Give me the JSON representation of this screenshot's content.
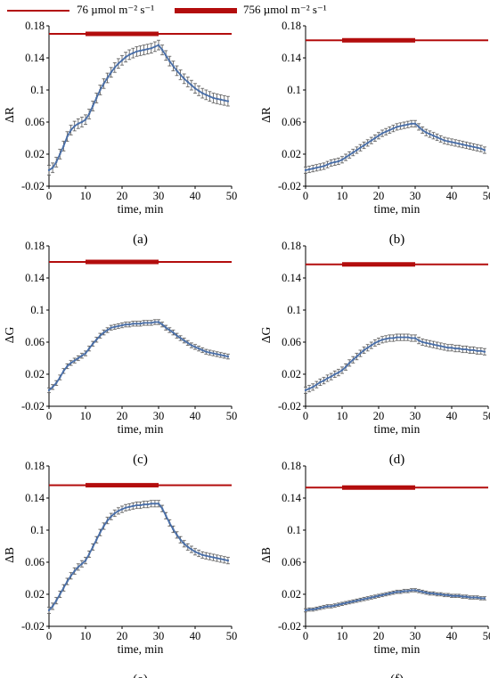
{
  "legend": {
    "thin_label": "76 µmol m⁻² s⁻¹",
    "thick_label": "756 µmol m⁻² s⁻¹",
    "color": "#b30d0d"
  },
  "colors": {
    "series": "#4a6fa8",
    "errorbar": "#555555",
    "light_bar": "#b30d0d"
  },
  "chart_data": [
    {
      "panel": "(a)",
      "type": "line",
      "ylabel": "ΔR",
      "xlabel": "time, min",
      "xlim": [
        0,
        50
      ],
      "ylim": [
        -0.02,
        0.18
      ],
      "xticks": [
        "0",
        "10",
        "20",
        "30",
        "40",
        "50"
      ],
      "yticks": [
        "-0.02",
        "0.02",
        "0.06",
        "0.1",
        "0.14",
        "0.18"
      ],
      "light_regime": [
        {
          "from": 0,
          "to": 10,
          "intensity": "low"
        },
        {
          "from": 10,
          "to": 30,
          "intensity": "high"
        },
        {
          "from": 30,
          "to": 50,
          "intensity": "low"
        }
      ],
      "light_bar_y": 0.17,
      "series": [
        {
          "x": [
            0,
            1,
            2,
            3,
            4,
            5,
            6,
            7,
            8,
            9,
            10,
            11,
            12,
            13,
            14,
            15,
            16,
            17,
            18,
            19,
            20,
            21,
            22,
            23,
            24,
            25,
            26,
            27,
            28,
            29,
            30,
            31,
            32,
            33,
            34,
            35,
            36,
            37,
            38,
            39,
            40,
            41,
            42,
            43,
            44,
            45,
            46,
            47,
            48,
            49
          ],
          "y": [
            0.0,
            0.003,
            0.01,
            0.02,
            0.03,
            0.042,
            0.05,
            0.055,
            0.058,
            0.06,
            0.063,
            0.07,
            0.08,
            0.09,
            0.1,
            0.108,
            0.115,
            0.122,
            0.128,
            0.133,
            0.137,
            0.141,
            0.144,
            0.146,
            0.148,
            0.149,
            0.15,
            0.151,
            0.152,
            0.154,
            0.156,
            0.15,
            0.143,
            0.136,
            0.13,
            0.124,
            0.119,
            0.114,
            0.11,
            0.106,
            0.102,
            0.099,
            0.096,
            0.094,
            0.092,
            0.09,
            0.089,
            0.088,
            0.087,
            0.086
          ],
          "err": 0.006
        }
      ]
    },
    {
      "panel": "(b)",
      "type": "line",
      "ylabel": "ΔR",
      "xlabel": "time, min",
      "xlim": [
        0,
        50
      ],
      "ylim": [
        -0.02,
        0.18
      ],
      "xticks": [
        "0",
        "10",
        "20",
        "30",
        "40",
        "50"
      ],
      "yticks": [
        "-0.02",
        "0.02",
        "0.06",
        "0.1",
        "0.14",
        "0.18"
      ],
      "light_regime": [
        {
          "from": 0,
          "to": 10,
          "intensity": "low"
        },
        {
          "from": 10,
          "to": 30,
          "intensity": "high"
        },
        {
          "from": 30,
          "to": 50,
          "intensity": "low"
        }
      ],
      "light_bar_y": 0.162,
      "series": [
        {
          "x": [
            0,
            1,
            2,
            3,
            4,
            5,
            6,
            7,
            8,
            9,
            10,
            11,
            12,
            13,
            14,
            15,
            16,
            17,
            18,
            19,
            20,
            21,
            22,
            23,
            24,
            25,
            26,
            27,
            28,
            29,
            30,
            31,
            32,
            33,
            34,
            35,
            36,
            37,
            38,
            39,
            40,
            41,
            42,
            43,
            44,
            45,
            46,
            47,
            48,
            49
          ],
          "y": [
            0.0,
            0.001,
            0.002,
            0.003,
            0.004,
            0.005,
            0.007,
            0.009,
            0.01,
            0.011,
            0.013,
            0.016,
            0.019,
            0.022,
            0.025,
            0.028,
            0.031,
            0.034,
            0.037,
            0.04,
            0.043,
            0.046,
            0.048,
            0.05,
            0.052,
            0.054,
            0.055,
            0.056,
            0.057,
            0.058,
            0.058,
            0.054,
            0.05,
            0.047,
            0.045,
            0.043,
            0.041,
            0.039,
            0.037,
            0.036,
            0.035,
            0.034,
            0.033,
            0.032,
            0.031,
            0.03,
            0.029,
            0.028,
            0.027,
            0.025
          ],
          "err": 0.004
        }
      ]
    },
    {
      "panel": "(c)",
      "type": "line",
      "ylabel": "ΔG",
      "xlabel": "time, min",
      "xlim": [
        0,
        50
      ],
      "ylim": [
        -0.02,
        0.18
      ],
      "xticks": [
        "0",
        "10",
        "20",
        "30",
        "40",
        "50"
      ],
      "yticks": [
        "-0.02",
        "0.02",
        "0.06",
        "0.1",
        "0.14",
        "0.18"
      ],
      "light_regime": [
        {
          "from": 0,
          "to": 10,
          "intensity": "low"
        },
        {
          "from": 10,
          "to": 30,
          "intensity": "high"
        },
        {
          "from": 30,
          "to": 50,
          "intensity": "low"
        }
      ],
      "light_bar_y": 0.16,
      "series": [
        {
          "x": [
            0,
            1,
            2,
            3,
            4,
            5,
            6,
            7,
            8,
            9,
            10,
            11,
            12,
            13,
            14,
            15,
            16,
            17,
            18,
            19,
            20,
            21,
            22,
            23,
            24,
            25,
            26,
            27,
            28,
            29,
            30,
            31,
            32,
            33,
            34,
            35,
            36,
            37,
            38,
            39,
            40,
            41,
            42,
            43,
            44,
            45,
            46,
            47,
            48,
            49
          ],
          "y": [
            0.0,
            0.004,
            0.009,
            0.016,
            0.024,
            0.03,
            0.034,
            0.037,
            0.04,
            0.043,
            0.046,
            0.052,
            0.058,
            0.063,
            0.068,
            0.072,
            0.075,
            0.078,
            0.079,
            0.08,
            0.081,
            0.082,
            0.082,
            0.083,
            0.083,
            0.083,
            0.084,
            0.084,
            0.084,
            0.085,
            0.085,
            0.082,
            0.078,
            0.075,
            0.072,
            0.068,
            0.065,
            0.062,
            0.059,
            0.056,
            0.054,
            0.052,
            0.05,
            0.048,
            0.047,
            0.046,
            0.045,
            0.044,
            0.043,
            0.042
          ],
          "err": 0.003
        }
      ]
    },
    {
      "panel": "(d)",
      "type": "line",
      "ylabel": "ΔG",
      "xlabel": "time, min",
      "xlim": [
        0,
        50
      ],
      "ylim": [
        -0.02,
        0.18
      ],
      "xticks": [
        "0",
        "10",
        "20",
        "30",
        "40",
        "50"
      ],
      "yticks": [
        "-0.02",
        "0.02",
        "0.06",
        "0.1",
        "0.14",
        "0.18"
      ],
      "light_regime": [
        {
          "from": 0,
          "to": 10,
          "intensity": "low"
        },
        {
          "from": 10,
          "to": 30,
          "intensity": "high"
        },
        {
          "from": 30,
          "to": 50,
          "intensity": "low"
        }
      ],
      "light_bar_y": 0.157,
      "series": [
        {
          "x": [
            0,
            1,
            2,
            3,
            4,
            5,
            6,
            7,
            8,
            9,
            10,
            11,
            12,
            13,
            14,
            15,
            16,
            17,
            18,
            19,
            20,
            21,
            22,
            23,
            24,
            25,
            26,
            27,
            28,
            29,
            30,
            31,
            32,
            33,
            34,
            35,
            36,
            37,
            38,
            39,
            40,
            41,
            42,
            43,
            44,
            45,
            46,
            47,
            48,
            49
          ],
          "y": [
            0.0,
            0.002,
            0.004,
            0.007,
            0.01,
            0.012,
            0.015,
            0.017,
            0.02,
            0.022,
            0.025,
            0.029,
            0.034,
            0.038,
            0.042,
            0.046,
            0.05,
            0.053,
            0.056,
            0.059,
            0.061,
            0.063,
            0.064,
            0.065,
            0.065,
            0.066,
            0.066,
            0.066,
            0.066,
            0.065,
            0.065,
            0.062,
            0.06,
            0.059,
            0.058,
            0.057,
            0.056,
            0.055,
            0.054,
            0.053,
            0.053,
            0.052,
            0.052,
            0.051,
            0.051,
            0.05,
            0.05,
            0.049,
            0.049,
            0.048
          ],
          "err": 0.004
        }
      ]
    },
    {
      "panel": "(e)",
      "type": "line",
      "ylabel": "ΔB",
      "xlabel": "time, min",
      "xlim": [
        0,
        50
      ],
      "ylim": [
        -0.02,
        0.18
      ],
      "xticks": [
        "0",
        "10",
        "20",
        "30",
        "40",
        "50"
      ],
      "yticks": [
        "-0.02",
        "0.02",
        "0.06",
        "0.1",
        "0.14",
        "0.18"
      ],
      "light_regime": [
        {
          "from": 0,
          "to": 10,
          "intensity": "low"
        },
        {
          "from": 10,
          "to": 30,
          "intensity": "high"
        },
        {
          "from": 30,
          "to": 50,
          "intensity": "low"
        }
      ],
      "light_bar_y": 0.156,
      "series": [
        {
          "x": [
            0,
            1,
            2,
            3,
            4,
            5,
            6,
            7,
            8,
            9,
            10,
            11,
            12,
            13,
            14,
            15,
            16,
            17,
            18,
            19,
            20,
            21,
            22,
            23,
            24,
            25,
            26,
            27,
            28,
            29,
            30,
            31,
            32,
            33,
            34,
            35,
            36,
            37,
            38,
            39,
            40,
            41,
            42,
            43,
            44,
            45,
            46,
            47,
            48,
            49
          ],
          "y": [
            0.0,
            0.005,
            0.012,
            0.02,
            0.028,
            0.036,
            0.043,
            0.049,
            0.054,
            0.058,
            0.062,
            0.07,
            0.079,
            0.088,
            0.097,
            0.105,
            0.112,
            0.117,
            0.121,
            0.124,
            0.126,
            0.128,
            0.129,
            0.13,
            0.131,
            0.131,
            0.132,
            0.132,
            0.133,
            0.133,
            0.133,
            0.127,
            0.118,
            0.109,
            0.101,
            0.094,
            0.088,
            0.083,
            0.079,
            0.076,
            0.073,
            0.071,
            0.069,
            0.068,
            0.067,
            0.066,
            0.065,
            0.064,
            0.063,
            0.062
          ],
          "err": 0.004
        }
      ]
    },
    {
      "panel": "(f)",
      "type": "line",
      "ylabel": "ΔB",
      "xlabel": "time, min",
      "xlim": [
        0,
        50
      ],
      "ylim": [
        -0.02,
        0.18
      ],
      "xticks": [
        "0",
        "10",
        "20",
        "30",
        "40",
        "50"
      ],
      "yticks": [
        "-0.02",
        "0.02",
        "0.06",
        "0.1",
        "0.14",
        "0.18"
      ],
      "light_regime": [
        {
          "from": 0,
          "to": 10,
          "intensity": "low"
        },
        {
          "from": 10,
          "to": 30,
          "intensity": "high"
        },
        {
          "from": 30,
          "to": 50,
          "intensity": "low"
        }
      ],
      "light_bar_y": 0.153,
      "series": [
        {
          "x": [
            0,
            1,
            2,
            3,
            4,
            5,
            6,
            7,
            8,
            9,
            10,
            11,
            12,
            13,
            14,
            15,
            16,
            17,
            18,
            19,
            20,
            21,
            22,
            23,
            24,
            25,
            26,
            27,
            28,
            29,
            30,
            31,
            32,
            33,
            34,
            35,
            36,
            37,
            38,
            39,
            40,
            41,
            42,
            43,
            44,
            45,
            46,
            47,
            48,
            49
          ],
          "y": [
            0.0,
            0.001,
            0.001,
            0.002,
            0.003,
            0.004,
            0.005,
            0.005,
            0.006,
            0.007,
            0.008,
            0.009,
            0.01,
            0.011,
            0.012,
            0.013,
            0.014,
            0.015,
            0.016,
            0.017,
            0.018,
            0.019,
            0.02,
            0.021,
            0.022,
            0.023,
            0.023,
            0.024,
            0.024,
            0.025,
            0.025,
            0.024,
            0.023,
            0.022,
            0.021,
            0.021,
            0.02,
            0.02,
            0.019,
            0.019,
            0.018,
            0.018,
            0.018,
            0.017,
            0.017,
            0.016,
            0.016,
            0.016,
            0.015,
            0.015
          ],
          "err": 0.002
        }
      ]
    }
  ]
}
